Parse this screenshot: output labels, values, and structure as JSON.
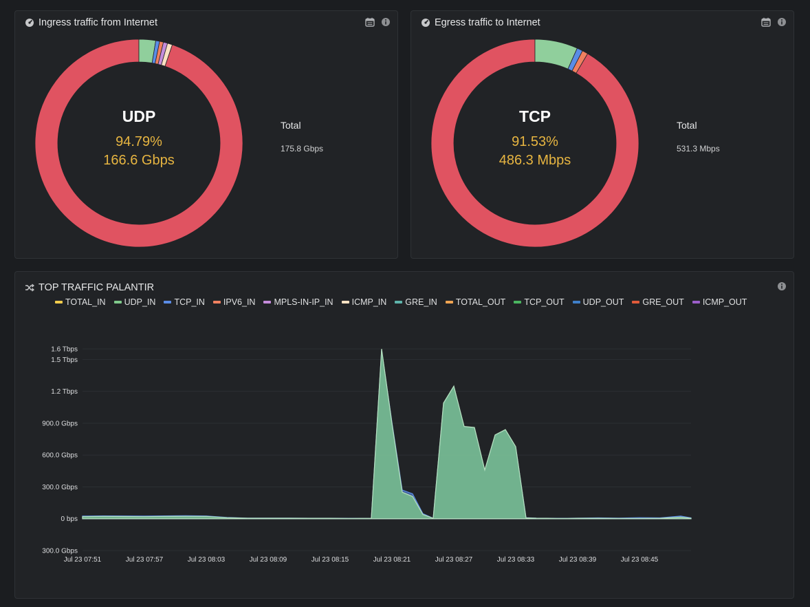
{
  "ingress": {
    "title": "Ingress traffic from Internet",
    "center": {
      "label": "UDP",
      "percent": "94.79%",
      "value": "166.6 Gbps"
    },
    "total_label": "Total",
    "total_value": "175.8 Gbps",
    "slices": [
      {
        "value": 94.79,
        "color": "#e05361"
      },
      {
        "value": 2.6,
        "color": "#90cf9c"
      },
      {
        "value": 0.6,
        "color": "#5a8ce6"
      },
      {
        "value": 0.6,
        "color": "#f08060"
      },
      {
        "value": 0.65,
        "color": "#c48bdb"
      },
      {
        "value": 0.76,
        "color": "#fbe0c2"
      }
    ]
  },
  "egress": {
    "title": "Egress traffic to Internet",
    "center": {
      "label": "TCP",
      "percent": "91.53%",
      "value": "486.3 Mbps"
    },
    "total_label": "Total",
    "total_value": "531.3 Mbps",
    "slices": [
      {
        "value": 91.53,
        "color": "#e05361"
      },
      {
        "value": 6.67,
        "color": "#90cf9c"
      },
      {
        "value": 0.9,
        "color": "#5a8ce6"
      },
      {
        "value": 0.9,
        "color": "#f08060"
      }
    ]
  },
  "traffic": {
    "title": "TOP TRAFFIC PALANTIR",
    "legend": [
      {
        "label": "TOTAL_IN",
        "color": "#f2cc4c"
      },
      {
        "label": "UDP_IN",
        "color": "#7fc98b"
      },
      {
        "label": "TCP_IN",
        "color": "#5a8ce6"
      },
      {
        "label": "IPV6_IN",
        "color": "#f08060"
      },
      {
        "label": "MPLS-IN-IP_IN",
        "color": "#c48bdb"
      },
      {
        "label": "ICMP_IN",
        "color": "#fbe0c2"
      },
      {
        "label": "GRE_IN",
        "color": "#5eb4ab"
      },
      {
        "label": "TOTAL_OUT",
        "color": "#f0a452"
      },
      {
        "label": "TCP_OUT",
        "color": "#4ab560"
      },
      {
        "label": "UDP_OUT",
        "color": "#3f7fc9"
      },
      {
        "label": "GRE_OUT",
        "color": "#df5a3a"
      },
      {
        "label": "ICMP_OUT",
        "color": "#9b5ec9"
      }
    ]
  },
  "chart_data": {
    "type": "area",
    "title": "TOP TRAFFIC PALANTIR",
    "y_ticks": [
      "1.6 Tbps",
      "1.5 Tbps",
      "1.2 Tbps",
      "900.0 Gbps",
      "600.0 Gbps",
      "300.0 Gbps",
      "0 bps",
      "300.0 Gbps"
    ],
    "y_tick_values": [
      1600,
      1500,
      1200,
      900,
      600,
      300,
      0,
      -300
    ],
    "ylim": [
      -300,
      1600
    ],
    "x_ticks": [
      "Jul 23 07:51",
      "Jul 23 07:57",
      "Jul 23 08:03",
      "Jul 23 08:09",
      "Jul 23 08:15",
      "Jul 23 08:21",
      "Jul 23 08:27",
      "Jul 23 08:33",
      "Jul 23 08:39",
      "Jul 23 08:45"
    ],
    "xlim": [
      0,
      59
    ],
    "series": [
      {
        "name": "UDP_IN",
        "color": "#7fc98b",
        "x": [
          0,
          2,
          4,
          6,
          8,
          10,
          12,
          14,
          16,
          18,
          20,
          22,
          24,
          26,
          28,
          29,
          30,
          31,
          32,
          33,
          34,
          35,
          36,
          37,
          38,
          39,
          40,
          41,
          42,
          43,
          44,
          45,
          46,
          47,
          48,
          50,
          52,
          54,
          56,
          58,
          59
        ],
        "y": [
          20,
          22,
          21,
          20,
          22,
          23,
          22,
          10,
          5,
          5,
          5,
          4,
          4,
          3,
          4,
          1600,
          900,
          250,
          210,
          40,
          4,
          1090,
          1250,
          870,
          860,
          460,
          790,
          840,
          680,
          8,
          5,
          4,
          3,
          3,
          4,
          4,
          3,
          3,
          4,
          15,
          5
        ]
      },
      {
        "name": "TCP_IN",
        "color": "#5a8ce6",
        "x": [
          0,
          2,
          4,
          6,
          8,
          10,
          12,
          14,
          16,
          18,
          20,
          22,
          24,
          26,
          28,
          29,
          30,
          31,
          32,
          33,
          34,
          35,
          36,
          37,
          38,
          39,
          40,
          41,
          42,
          43,
          44,
          45,
          46,
          47,
          48,
          50,
          52,
          54,
          56,
          58,
          59
        ],
        "y": [
          25,
          27,
          26,
          25,
          27,
          28,
          26,
          12,
          6,
          6,
          6,
          5,
          5,
          4,
          5,
          1590,
          910,
          270,
          235,
          48,
          5,
          1080,
          1245,
          865,
          855,
          455,
          785,
          835,
          675,
          10,
          6,
          5,
          4,
          4,
          6,
          8,
          6,
          10,
          8,
          25,
          8
        ]
      }
    ]
  }
}
